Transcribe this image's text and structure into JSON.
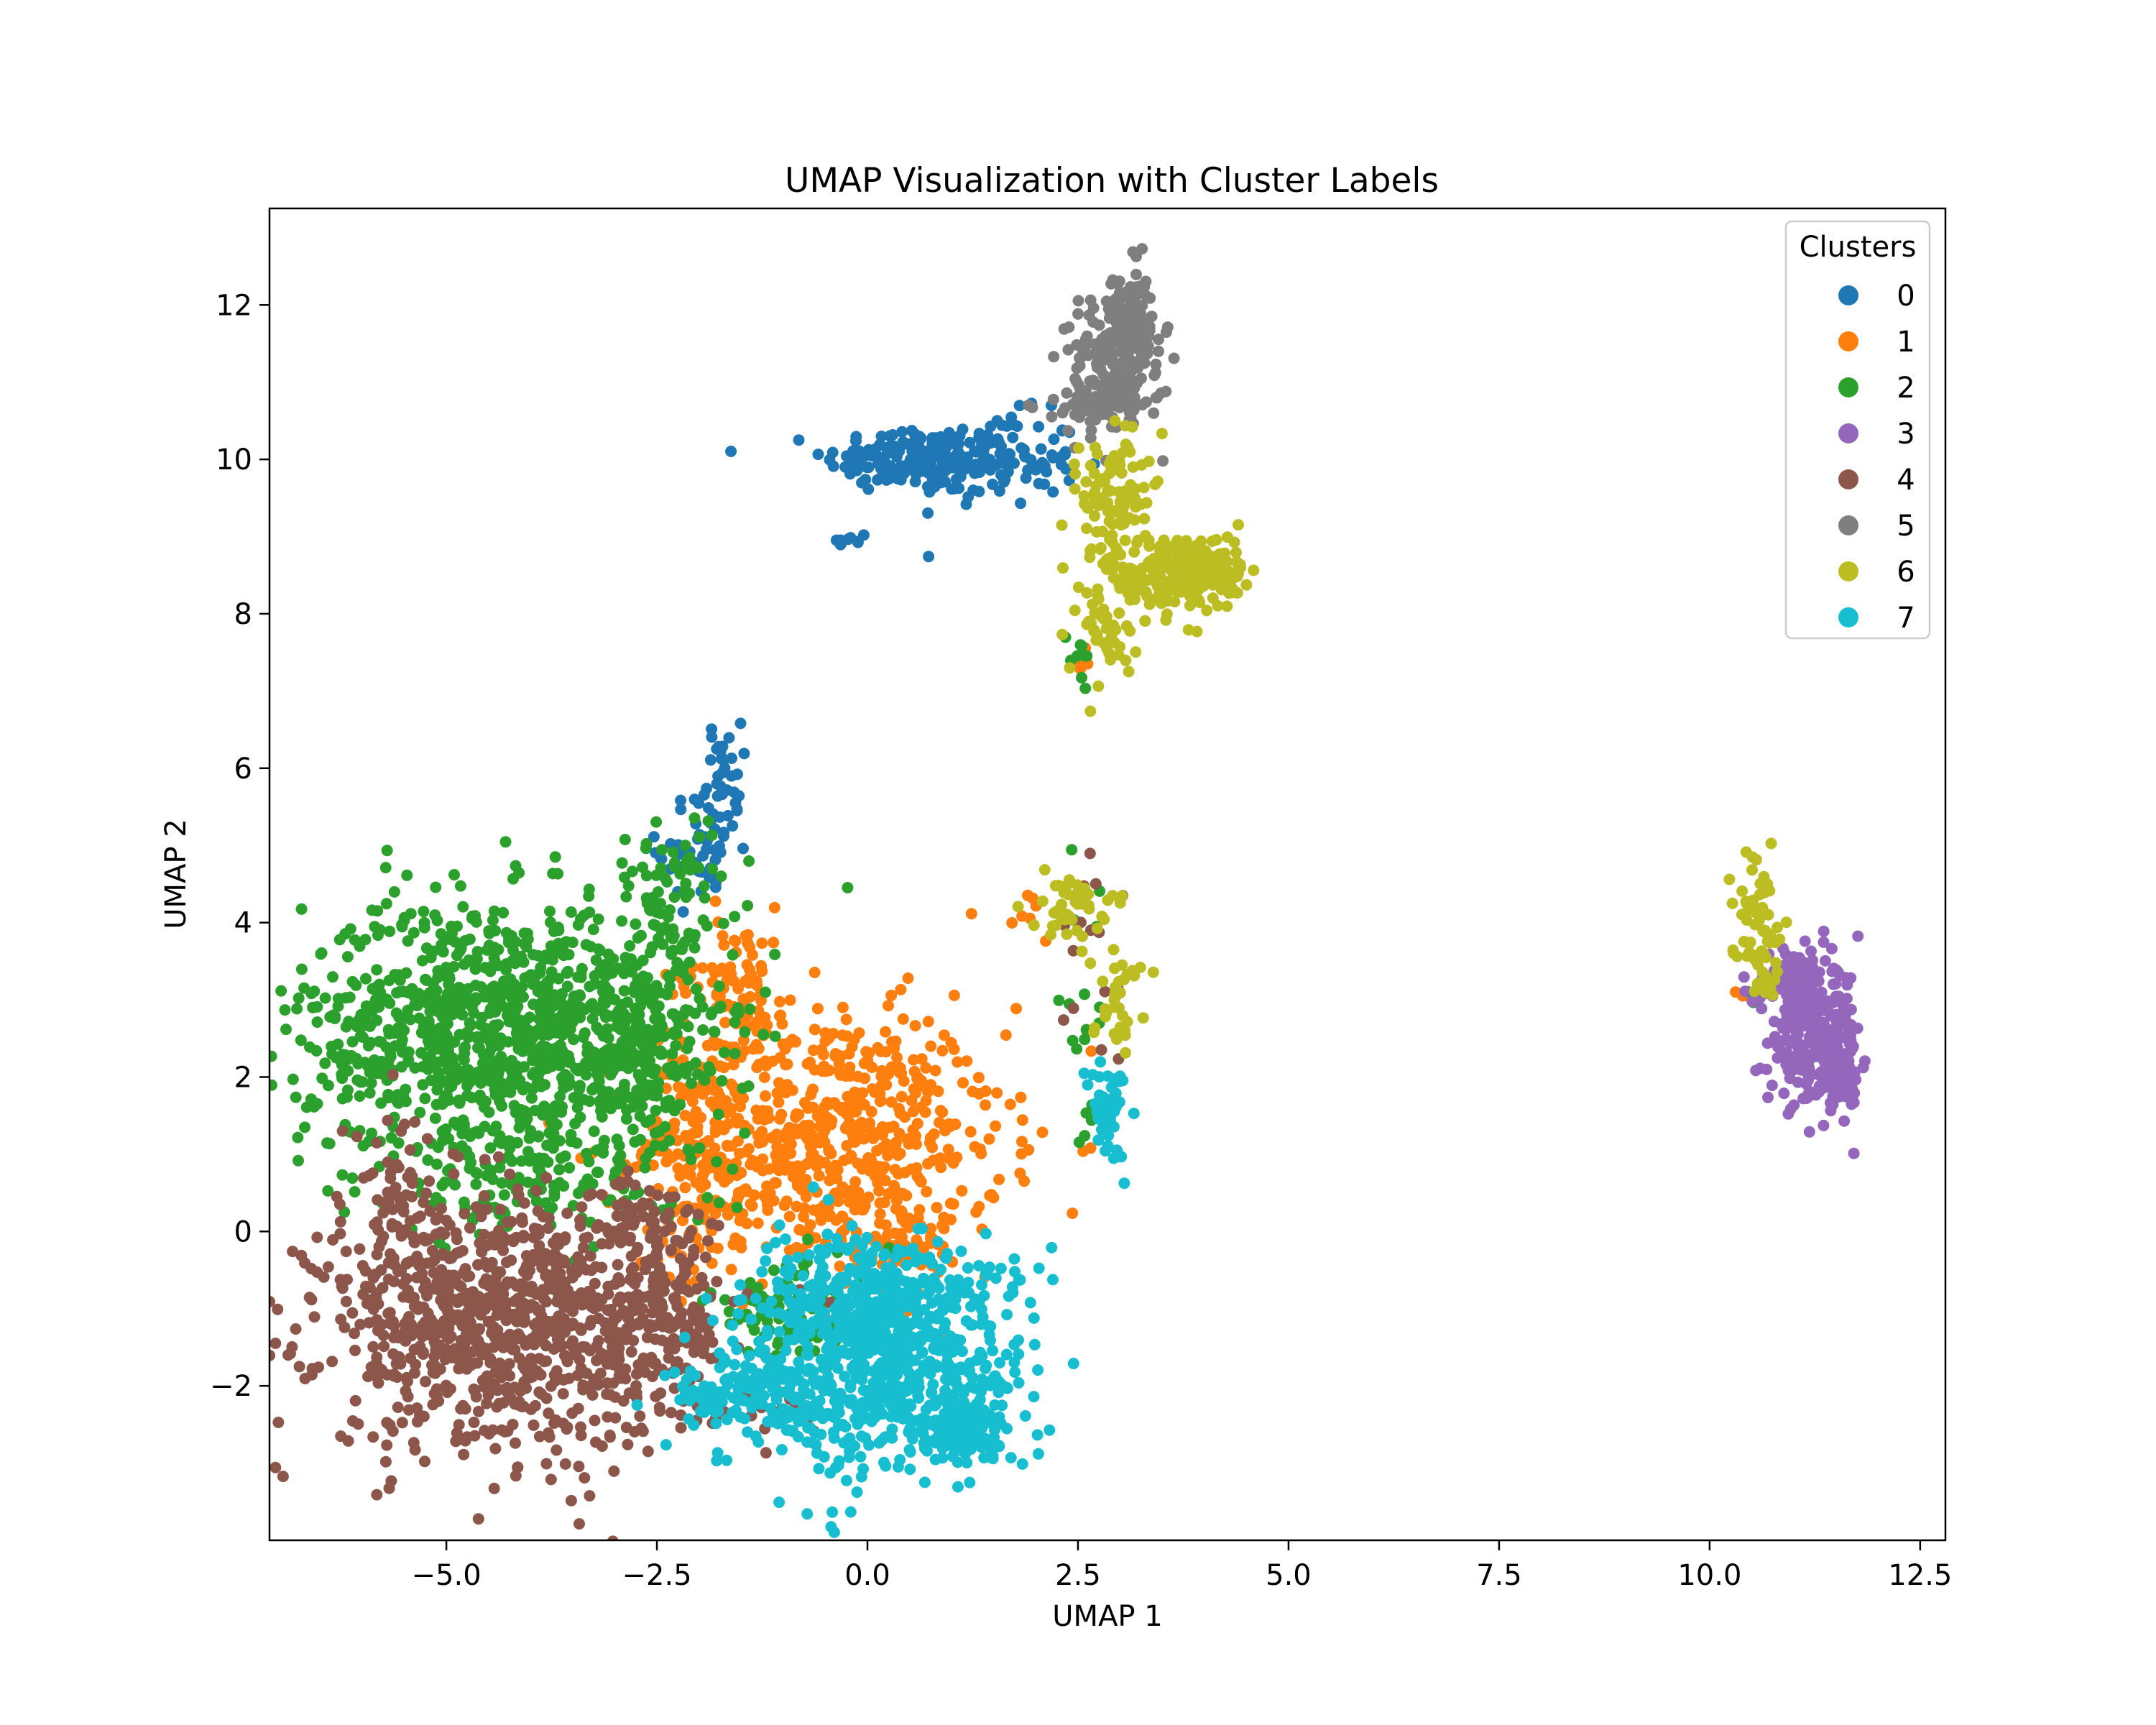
{
  "chart_data": {
    "type": "scatter",
    "title": "UMAP Visualization with Cluster Labels",
    "xlabel": "UMAP 1",
    "ylabel": "UMAP 2",
    "xlim": [
      -7.1,
      12.8
    ],
    "ylim": [
      -4.0,
      13.25
    ],
    "xticks": [
      -5.0,
      -2.5,
      0.0,
      2.5,
      5.0,
      7.5,
      10.0,
      12.5
    ],
    "xtick_labels": [
      "−5.0",
      "−2.5",
      "0.0",
      "2.5",
      "5.0",
      "7.5",
      "10.0",
      "12.5"
    ],
    "yticks": [
      -2,
      0,
      2,
      4,
      6,
      8,
      10,
      12
    ],
    "ytick_labels": [
      "−2",
      "0",
      "2",
      "4",
      "6",
      "8",
      "10",
      "12"
    ],
    "grid": false,
    "legend": {
      "title": "Clusters",
      "placement": "top-right"
    },
    "series": [
      {
        "name": "0",
        "color": "#1f77b4",
        "regions": [
          {
            "center": [
              0.6,
              10.0
            ],
            "spread": [
              0.55,
              0.22
            ],
            "n": 160
          },
          {
            "center": [
              1.5,
              10.0
            ],
            "spread": [
              0.5,
              0.3
            ],
            "n": 110
          },
          {
            "center": [
              -0.2,
              8.95
            ],
            "spread": [
              0.1,
              0.07
            ],
            "n": 8
          },
          {
            "center": [
              -2.0,
              4.95
            ],
            "spread": [
              0.25,
              0.35
            ],
            "n": 50
          },
          {
            "center": [
              -1.7,
              5.9
            ],
            "spread": [
              0.1,
              0.35
            ],
            "n": 35
          }
        ]
      },
      {
        "name": "1",
        "color": "#ff7f0e",
        "regions": [
          {
            "center": [
              -0.5,
              1.2
            ],
            "spread": [
              1.05,
              0.85
            ],
            "n": 650
          },
          {
            "center": [
              -2.0,
              0.8
            ],
            "spread": [
              0.35,
              0.8
            ],
            "n": 120
          },
          {
            "center": [
              -1.6,
              3.3
            ],
            "spread": [
              0.35,
              0.45
            ],
            "n": 80
          },
          {
            "center": [
              0.4,
              -0.1
            ],
            "spread": [
              0.3,
              0.3
            ],
            "n": 60
          },
          {
            "center": [
              2.1,
              4.0
            ],
            "spread": [
              0.2,
              0.3
            ],
            "n": 8
          },
          {
            "center": [
              10.5,
              3.1
            ],
            "spread": [
              0.12,
              0.04
            ],
            "n": 6
          },
          {
            "center": [
              2.5,
              7.35
            ],
            "spread": [
              0.08,
              0.08
            ],
            "n": 5
          }
        ]
      },
      {
        "name": "2",
        "color": "#2ca02c",
        "regions": [
          {
            "center": [
              -4.4,
              2.6
            ],
            "spread": [
              1.15,
              0.85
            ],
            "n": 1050
          },
          {
            "center": [
              -2.6,
              2.4
            ],
            "spread": [
              0.45,
              0.85
            ],
            "n": 180
          },
          {
            "center": [
              -2.3,
              4.5
            ],
            "spread": [
              0.4,
              0.4
            ],
            "n": 60
          },
          {
            "center": [
              -4.0,
              0.6
            ],
            "spread": [
              1.0,
              0.4
            ],
            "n": 120
          },
          {
            "center": [
              -0.8,
              -1.0
            ],
            "spread": [
              0.55,
              0.35
            ],
            "n": 90
          },
          {
            "center": [
              2.5,
              7.5
            ],
            "spread": [
              0.1,
              0.15
            ],
            "n": 10
          },
          {
            "center": [
              2.6,
              3.0
            ],
            "spread": [
              0.15,
              0.9
            ],
            "n": 20
          },
          {
            "center": [
              10.6,
              3.1
            ],
            "spread": [
              0.1,
              0.05
            ],
            "n": 5
          }
        ]
      },
      {
        "name": "3",
        "color": "#9467bd",
        "regions": [
          {
            "center": [
              11.25,
              2.55
            ],
            "spread": [
              0.28,
              0.45
            ],
            "n": 280
          },
          {
            "center": [
              11.0,
              3.25
            ],
            "spread": [
              0.15,
              0.2
            ],
            "n": 50
          },
          {
            "center": [
              11.55,
              1.95
            ],
            "spread": [
              0.12,
              0.2
            ],
            "n": 50
          }
        ]
      },
      {
        "name": "4",
        "color": "#8c564b",
        "regions": [
          {
            "center": [
              -4.2,
              -1.2
            ],
            "spread": [
              1.15,
              0.8
            ],
            "n": 1000
          },
          {
            "center": [
              -5.6,
              0.5
            ],
            "spread": [
              0.25,
              0.5
            ],
            "n": 60
          },
          {
            "center": [
              -2.4,
              -1.0
            ],
            "spread": [
              0.35,
              0.5
            ],
            "n": 100
          },
          {
            "center": [
              -2.7,
              0.2
            ],
            "spread": [
              0.3,
              0.3
            ],
            "n": 50
          },
          {
            "center": [
              2.6,
              3.6
            ],
            "spread": [
              0.2,
              0.5
            ],
            "n": 15
          },
          {
            "center": [
              -1.3,
              -2.2
            ],
            "spread": [
              0.35,
              0.2
            ],
            "n": 25
          }
        ]
      },
      {
        "name": "5",
        "color": "#7f7f7f",
        "regions": [
          {
            "center": [
              2.95,
              11.2
            ],
            "spread": [
              0.28,
              0.45
            ],
            "n": 200
          },
          {
            "center": [
              3.1,
              11.9
            ],
            "spread": [
              0.12,
              0.3
            ],
            "n": 70
          },
          {
            "center": [
              2.6,
              10.7
            ],
            "spread": [
              0.22,
              0.12
            ],
            "n": 50
          }
        ]
      },
      {
        "name": "6",
        "color": "#bcbd22",
        "regions": [
          {
            "center": [
              3.6,
              8.5
            ],
            "spread": [
              0.4,
              0.3
            ],
            "n": 220
          },
          {
            "center": [
              4.1,
              8.6
            ],
            "spread": [
              0.22,
              0.15
            ],
            "n": 60
          },
          {
            "center": [
              2.95,
              9.6
            ],
            "spread": [
              0.2,
              0.4
            ],
            "n": 90
          },
          {
            "center": [
              2.8,
              7.8
            ],
            "spread": [
              0.22,
              0.3
            ],
            "n": 35
          },
          {
            "center": [
              2.4,
              4.2
            ],
            "spread": [
              0.22,
              0.2
            ],
            "n": 45
          },
          {
            "center": [
              2.95,
              3.1
            ],
            "spread": [
              0.15,
              0.35
            ],
            "n": 35
          },
          {
            "center": [
              10.55,
              4.1
            ],
            "spread": [
              0.15,
              0.4
            ],
            "n": 55
          },
          {
            "center": [
              10.7,
              3.3
            ],
            "spread": [
              0.1,
              0.15
            ],
            "n": 15
          }
        ]
      },
      {
        "name": "7",
        "color": "#17becf",
        "regions": [
          {
            "center": [
              0.2,
              -1.7
            ],
            "spread": [
              0.85,
              0.7
            ],
            "n": 700
          },
          {
            "center": [
              1.1,
              -2.6
            ],
            "spread": [
              0.3,
              0.2
            ],
            "n": 110
          },
          {
            "center": [
              -1.3,
              -2.2
            ],
            "spread": [
              0.55,
              0.3
            ],
            "n": 130
          },
          {
            "center": [
              0.0,
              -0.6
            ],
            "spread": [
              0.55,
              0.35
            ],
            "n": 140
          },
          {
            "center": [
              2.85,
              1.6
            ],
            "spread": [
              0.12,
              0.4
            ],
            "n": 45
          }
        ]
      }
    ]
  }
}
